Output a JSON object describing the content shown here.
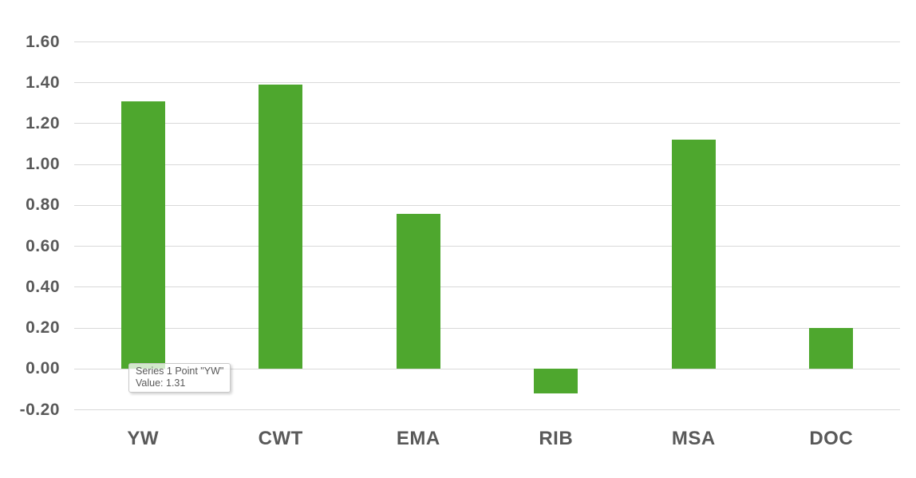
{
  "chart_data": {
    "type": "bar",
    "title": "",
    "xlabel": "",
    "ylabel": "",
    "series_name": "Series 1",
    "categories": [
      "YW",
      "CWT",
      "EMA",
      "RIB",
      "MSA",
      "DOC"
    ],
    "values": [
      1.31,
      1.39,
      0.76,
      -0.12,
      1.12,
      0.2
    ],
    "ylim": [
      -0.2,
      1.6
    ],
    "ytick_step": 0.2,
    "ytick_labels": [
      "1.60",
      "1.40",
      "1.20",
      "1.00",
      "0.80",
      "0.60",
      "0.40",
      "0.20",
      "0.00",
      "-0.20"
    ],
    "grid": true,
    "legend": "none",
    "bar_color": "#4ea72e"
  },
  "tooltip": {
    "line1": "Series 1 Point \"YW\"",
    "line2": "Value: 1.31"
  },
  "colors": {
    "bar": "#4ea72e",
    "gridline": "#d9d9d9",
    "axis_text": "#595959",
    "tooltip_border": "#c8c8c8",
    "tooltip_text": "#595959",
    "background": "#ffffff"
  }
}
